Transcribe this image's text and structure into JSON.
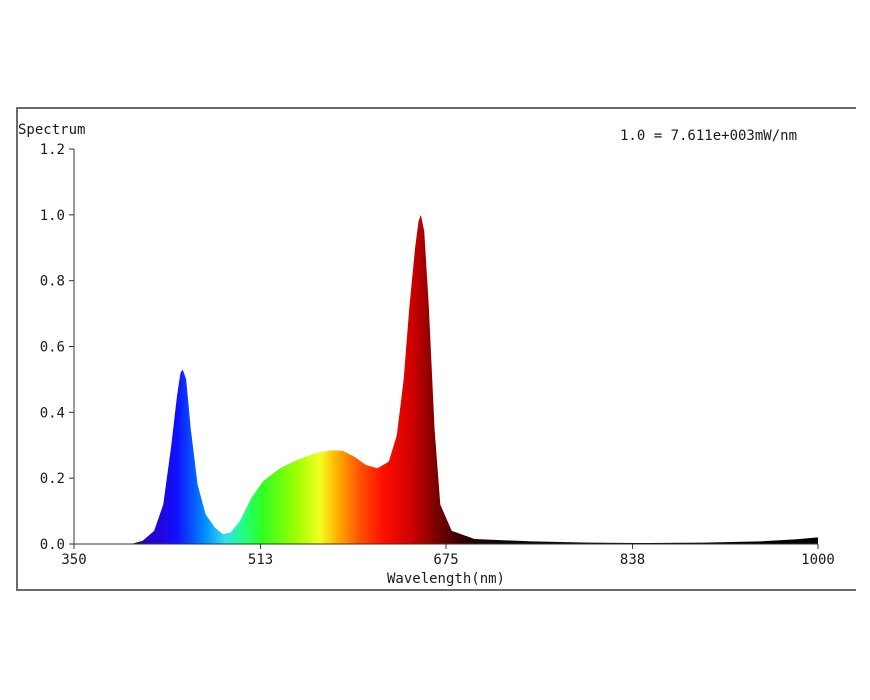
{
  "chart_data": {
    "type": "area",
    "title": "Spectrum",
    "scale_note": "1.0 = 7.611e+003mW/nm",
    "xlabel": "Wavelength(nm)",
    "ylabel": "",
    "xlim": [
      350,
      1000
    ],
    "ylim": [
      0,
      1.2
    ],
    "x_ticks": [
      350,
      513,
      675,
      838,
      1000
    ],
    "x_tick_labels": [
      "350",
      "513",
      "675",
      "838",
      "1000"
    ],
    "y_ticks": [
      0,
      0.2,
      0.4,
      0.6,
      0.8,
      1.0,
      1.2
    ],
    "y_tick_labels": [
      "0.0",
      "0.2",
      "0.4",
      "0.6",
      "0.8",
      "1.0",
      "1.2"
    ],
    "fill": "visible-spectrum gradient by wavelength",
    "series": [
      {
        "x": [
          350,
          400,
          410,
          420,
          428,
          435,
          440,
          443,
          445,
          448,
          452,
          458,
          465,
          473,
          480,
          487,
          495,
          505,
          515,
          530,
          545,
          560,
          575,
          585,
          595,
          605,
          615,
          625,
          632,
          638,
          643,
          648,
          651,
          653,
          656,
          660,
          665,
          670,
          680,
          700,
          750,
          800,
          850,
          900,
          950,
          980,
          1000
        ],
        "y": [
          0.0,
          0.0,
          0.01,
          0.04,
          0.12,
          0.3,
          0.45,
          0.52,
          0.53,
          0.5,
          0.35,
          0.18,
          0.09,
          0.05,
          0.03,
          0.035,
          0.07,
          0.14,
          0.19,
          0.23,
          0.255,
          0.275,
          0.285,
          0.283,
          0.265,
          0.24,
          0.23,
          0.25,
          0.33,
          0.5,
          0.72,
          0.9,
          0.98,
          1.0,
          0.95,
          0.72,
          0.35,
          0.12,
          0.04,
          0.015,
          0.008,
          0.004,
          0.003,
          0.004,
          0.008,
          0.014,
          0.02
        ]
      }
    ]
  }
}
